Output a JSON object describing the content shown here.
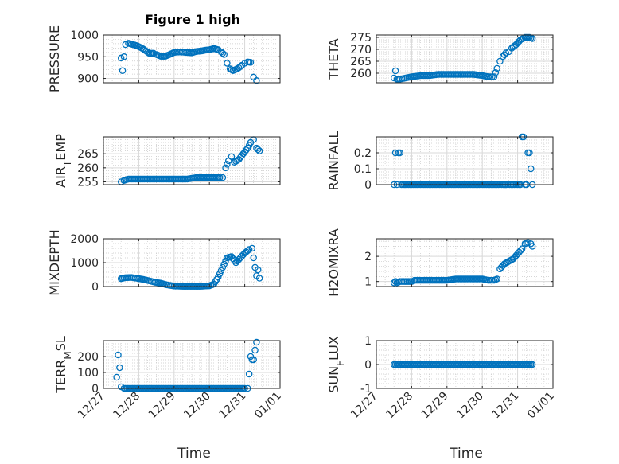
{
  "figure": {
    "title": "Figure 1 high"
  },
  "colors": {
    "marker": "#0072BD",
    "grid_major": "#d9d9d9",
    "grid_minor": "#c8c8c8",
    "axis": "#262626"
  },
  "x_axis": {
    "label": "Time",
    "ticks": [
      "12/27",
      "12/28",
      "12/29",
      "12/30",
      "12/31",
      "01/01"
    ],
    "range": [
      "12/27",
      "01/01"
    ]
  },
  "chart_data": [
    {
      "type": "scatter",
      "title": "Figure 1 high",
      "ylabel": "PRESSURE",
      "ylim": [
        890,
        1000
      ],
      "yticks": [
        900,
        950,
        1000
      ],
      "ytick_labels": [
        "900",
        "950",
        "1000"
      ],
      "grid": "on (major + minor)",
      "series": [
        {
          "x": [
            "12/27 12:00",
            "12/27 13:00",
            "12/27 14:00",
            "12/27 15:00",
            "12/27 17:00",
            "12/27 20:00",
            "12/27 23:00",
            "12/28 03:00",
            "12/28 07:00",
            "12/28 10:00",
            "12/28 12:00",
            "12/28 15:00",
            "12/28 18:00",
            "12/28 21:00",
            "12/29 00:00",
            "12/29 04:00",
            "12/29 08:00",
            "12/29 12:00",
            "12/29 15:00",
            "12/29 18:00",
            "12/29 21:00",
            "12/30 00:00",
            "12/30 03:00",
            "12/30 06:00",
            "12/30 08:00",
            "12/30 10:00",
            "12/30 12:00",
            "12/30 14:00",
            "12/30 16:00",
            "12/30 19:00",
            "12/30 22:00",
            "12/31 00:00",
            "12/31 02:00",
            "12/31 04:00",
            "12/31 06:00",
            "12/31 08:00"
          ],
          "y": [
            947,
            918,
            950,
            978,
            981,
            978,
            975,
            968,
            958,
            958,
            955,
            951,
            951,
            955,
            960,
            961,
            960,
            959,
            962,
            963,
            965,
            966,
            969,
            966,
            961,
            955,
            935,
            922,
            918,
            922,
            930,
            935,
            938,
            937,
            903,
            895
          ]
        }
      ]
    },
    {
      "type": "scatter",
      "ylabel": "THETA",
      "ylim": [
        256,
        276
      ],
      "yticks": [
        260,
        265,
        270,
        275
      ],
      "ytick_labels": [
        "260",
        "265",
        "270",
        "275"
      ],
      "grid": "on (major + minor)",
      "series": [
        {
          "x": [
            "12/27 12:00",
            "12/27 13:00",
            "12/27 14:00",
            "12/27 16:00",
            "12/27 20:00",
            "12/28 00:00",
            "12/28 06:00",
            "12/28 12:00",
            "12/28 18:00",
            "12/29 00:00",
            "12/29 06:00",
            "12/29 12:00",
            "12/29 18:00",
            "12/30 00:00",
            "12/30 04:00",
            "12/30 08:00",
            "12/30 10:00",
            "12/30 12:00",
            "12/30 14:00",
            "12/30 16:00",
            "12/30 18:00",
            "12/30 20:00",
            "12/30 23:00",
            "12/31 02:00",
            "12/31 05:00",
            "12/31 08:00",
            "12/31 10:00"
          ],
          "y": [
            258,
            261,
            257.5,
            257.5,
            258,
            258.5,
            259,
            259,
            259.5,
            259.5,
            259.5,
            259.5,
            259.5,
            259,
            258.5,
            258.5,
            262,
            265,
            267,
            268.5,
            269,
            270.5,
            272,
            274,
            275,
            275,
            274.5
          ]
        }
      ]
    },
    {
      "type": "scatter",
      "ylabel": "AIR_TEMP",
      "ylim": [
        254,
        271
      ],
      "yticks": [
        255,
        260,
        265
      ],
      "ytick_labels": [
        "255",
        "260",
        "265"
      ],
      "grid": "on (major + minor)",
      "series": [
        {
          "x": [
            "12/27 12:00",
            "12/27 14:00",
            "12/27 17:00",
            "12/27 21:00",
            "12/28 03:00",
            "12/28 09:00",
            "12/28 15:00",
            "12/28 21:00",
            "12/29 03:00",
            "12/29 09:00",
            "12/29 15:00",
            "12/29 21:00",
            "12/30 03:00",
            "12/30 07:00",
            "12/30 09:00",
            "12/30 11:00",
            "12/30 13:00",
            "12/30 15:00",
            "12/30 17:00",
            "12/30 20:00",
            "12/30 23:00",
            "12/31 02:00",
            "12/31 04:00",
            "12/31 06:00",
            "12/31 08:00",
            "12/31 10:00"
          ],
          "y": [
            255,
            255.5,
            256,
            256,
            256,
            256,
            256,
            256,
            256,
            256,
            256.5,
            256.5,
            256.5,
            256.5,
            256.5,
            260,
            262.5,
            264,
            262,
            263,
            265,
            267,
            269,
            270,
            267,
            266
          ]
        }
      ]
    },
    {
      "type": "scatter",
      "ylabel": "RAINFALL",
      "ylim": [
        0,
        0.3
      ],
      "yticks": [
        0,
        0.1,
        0.2
      ],
      "ytick_labels": [
        "0",
        "0.1",
        "0.2"
      ],
      "grid": "on (major + minor)",
      "series": [
        {
          "x": [
            "12/27 12:00",
            "12/27 13:00",
            "12/27 14:00",
            "12/27 15:00",
            "12/27 16:00",
            "12/27 17:00",
            "12/27 18:00",
            "12/28 00:00",
            "12/28 12:00",
            "12/29 00:00",
            "12/29 12:00",
            "12/30 00:00",
            "12/30 12:00",
            "12/30 23:00",
            "12/31 02:00",
            "12/31 03:00",
            "12/31 04:00",
            "12/31 05:00",
            "12/31 06:00",
            "12/31 07:00",
            "12/31 08:00",
            "12/31 10:00"
          ],
          "y": [
            0,
            0.2,
            0,
            0.2,
            0.2,
            0,
            0,
            0,
            0,
            0,
            0,
            0,
            0,
            0,
            0,
            0.3,
            0.3,
            0,
            0,
            0.2,
            0.2,
            0
          ]
        }
      ]
    },
    {
      "type": "scatter",
      "ylabel": "MIXDEPTH",
      "ylim": [
        0,
        2000
      ],
      "yticks": [
        0,
        1000,
        2000
      ],
      "ytick_labels": [
        "0",
        "1000",
        "2000"
      ],
      "grid": "on (major + minor)",
      "series": [
        {
          "x": [
            "12/27 12:00",
            "12/27 15:00",
            "12/27 19:00",
            "12/27 23:00",
            "12/28 03:00",
            "12/28 07:00",
            "12/28 11:00",
            "12/28 15:00",
            "12/28 19:00",
            "12/29 00:00",
            "12/29 06:00",
            "12/29 12:00",
            "12/29 18:00",
            "12/30 00:00",
            "12/30 03:00",
            "12/30 06:00",
            "12/30 09:00",
            "12/30 12:00",
            "12/30 15:00",
            "12/30 18:00",
            "12/30 21:00",
            "12/31 00:00",
            "12/31 03:00",
            "12/31 05:00",
            "12/31 07:00",
            "12/31 08:00",
            "12/31 09:00",
            "12/31 10:00"
          ],
          "y": [
            330,
            370,
            380,
            340,
            300,
            240,
            180,
            140,
            70,
            20,
            10,
            10,
            10,
            30,
            100,
            400,
            800,
            1200,
            1250,
            1000,
            1200,
            1400,
            1550,
            1600,
            800,
            450,
            700,
            350
          ]
        }
      ]
    },
    {
      "type": "scatter",
      "ylabel": "H2OMIXRA",
      "ylim": [
        0.8,
        2.7
      ],
      "yticks": [
        1,
        2
      ],
      "ytick_labels": [
        "1",
        "2"
      ],
      "grid": "on (major + minor)",
      "series": [
        {
          "x": [
            "12/27 12:00",
            "12/27 13:00",
            "12/27 14:00",
            "12/27 16:00",
            "12/27 20:00",
            "12/28 00:00",
            "12/28 02:00",
            "12/28 06:00",
            "12/28 12:00",
            "12/28 18:00",
            "12/29 00:00",
            "12/29 06:00",
            "12/29 12:00",
            "12/29 18:00",
            "12/30 00:00",
            "12/30 04:00",
            "12/30 08:00",
            "12/30 10:00",
            "12/30 12:00",
            "12/30 15:00",
            "12/30 18:00",
            "12/30 21:00",
            "12/31 00:00",
            "12/31 03:00",
            "12/31 05:00",
            "12/31 07:00",
            "12/31 09:00",
            "12/31 10:00"
          ],
          "y": [
            0.95,
            1.0,
            0.95,
            1.0,
            1.0,
            1.0,
            1.05,
            1.05,
            1.05,
            1.05,
            1.05,
            1.1,
            1.1,
            1.1,
            1.1,
            1.05,
            1.05,
            1.1,
            1.5,
            1.7,
            1.8,
            1.9,
            2.1,
            2.3,
            2.5,
            2.55,
            2.5,
            2.4
          ]
        }
      ]
    },
    {
      "type": "scatter",
      "ylabel": "TERR_MSL",
      "ylim": [
        0,
        300
      ],
      "yticks": [
        0,
        100,
        200
      ],
      "ytick_labels": [
        "0",
        "100",
        "200"
      ],
      "grid": "on (major + minor)",
      "series": [
        {
          "x": [
            "12/27 09:00",
            "12/27 10:00",
            "12/27 11:00",
            "12/27 12:00",
            "12/27 14:00",
            "12/27 18:00",
            "12/28 00:00",
            "12/28 12:00",
            "12/29 00:00",
            "12/29 12:00",
            "12/30 00:00",
            "12/30 12:00",
            "12/31 00:00",
            "12/31 02:00",
            "12/31 03:00",
            "12/31 04:00",
            "12/31 05:00",
            "12/31 06:00",
            "12/31 07:00",
            "12/31 08:00"
          ],
          "y": [
            70,
            210,
            130,
            10,
            0,
            0,
            0,
            0,
            0,
            0,
            0,
            0,
            0,
            0,
            90,
            200,
            180,
            180,
            240,
            290
          ]
        }
      ]
    },
    {
      "type": "scatter",
      "ylabel": "SUN_FLUX",
      "ylim": [
        -1,
        1
      ],
      "yticks": [
        -1,
        0,
        1
      ],
      "ytick_labels": [
        "-1",
        "0",
        "1"
      ],
      "grid": "on (major + minor)",
      "series": [
        {
          "x": [
            "12/27 12:00",
            "12/28 00:00",
            "12/28 12:00",
            "12/29 00:00",
            "12/29 12:00",
            "12/30 00:00",
            "12/30 12:00",
            "12/31 00:00",
            "12/31 10:00"
          ],
          "y": [
            0,
            0,
            0,
            0,
            0,
            0,
            0,
            0,
            0
          ]
        }
      ]
    }
  ]
}
